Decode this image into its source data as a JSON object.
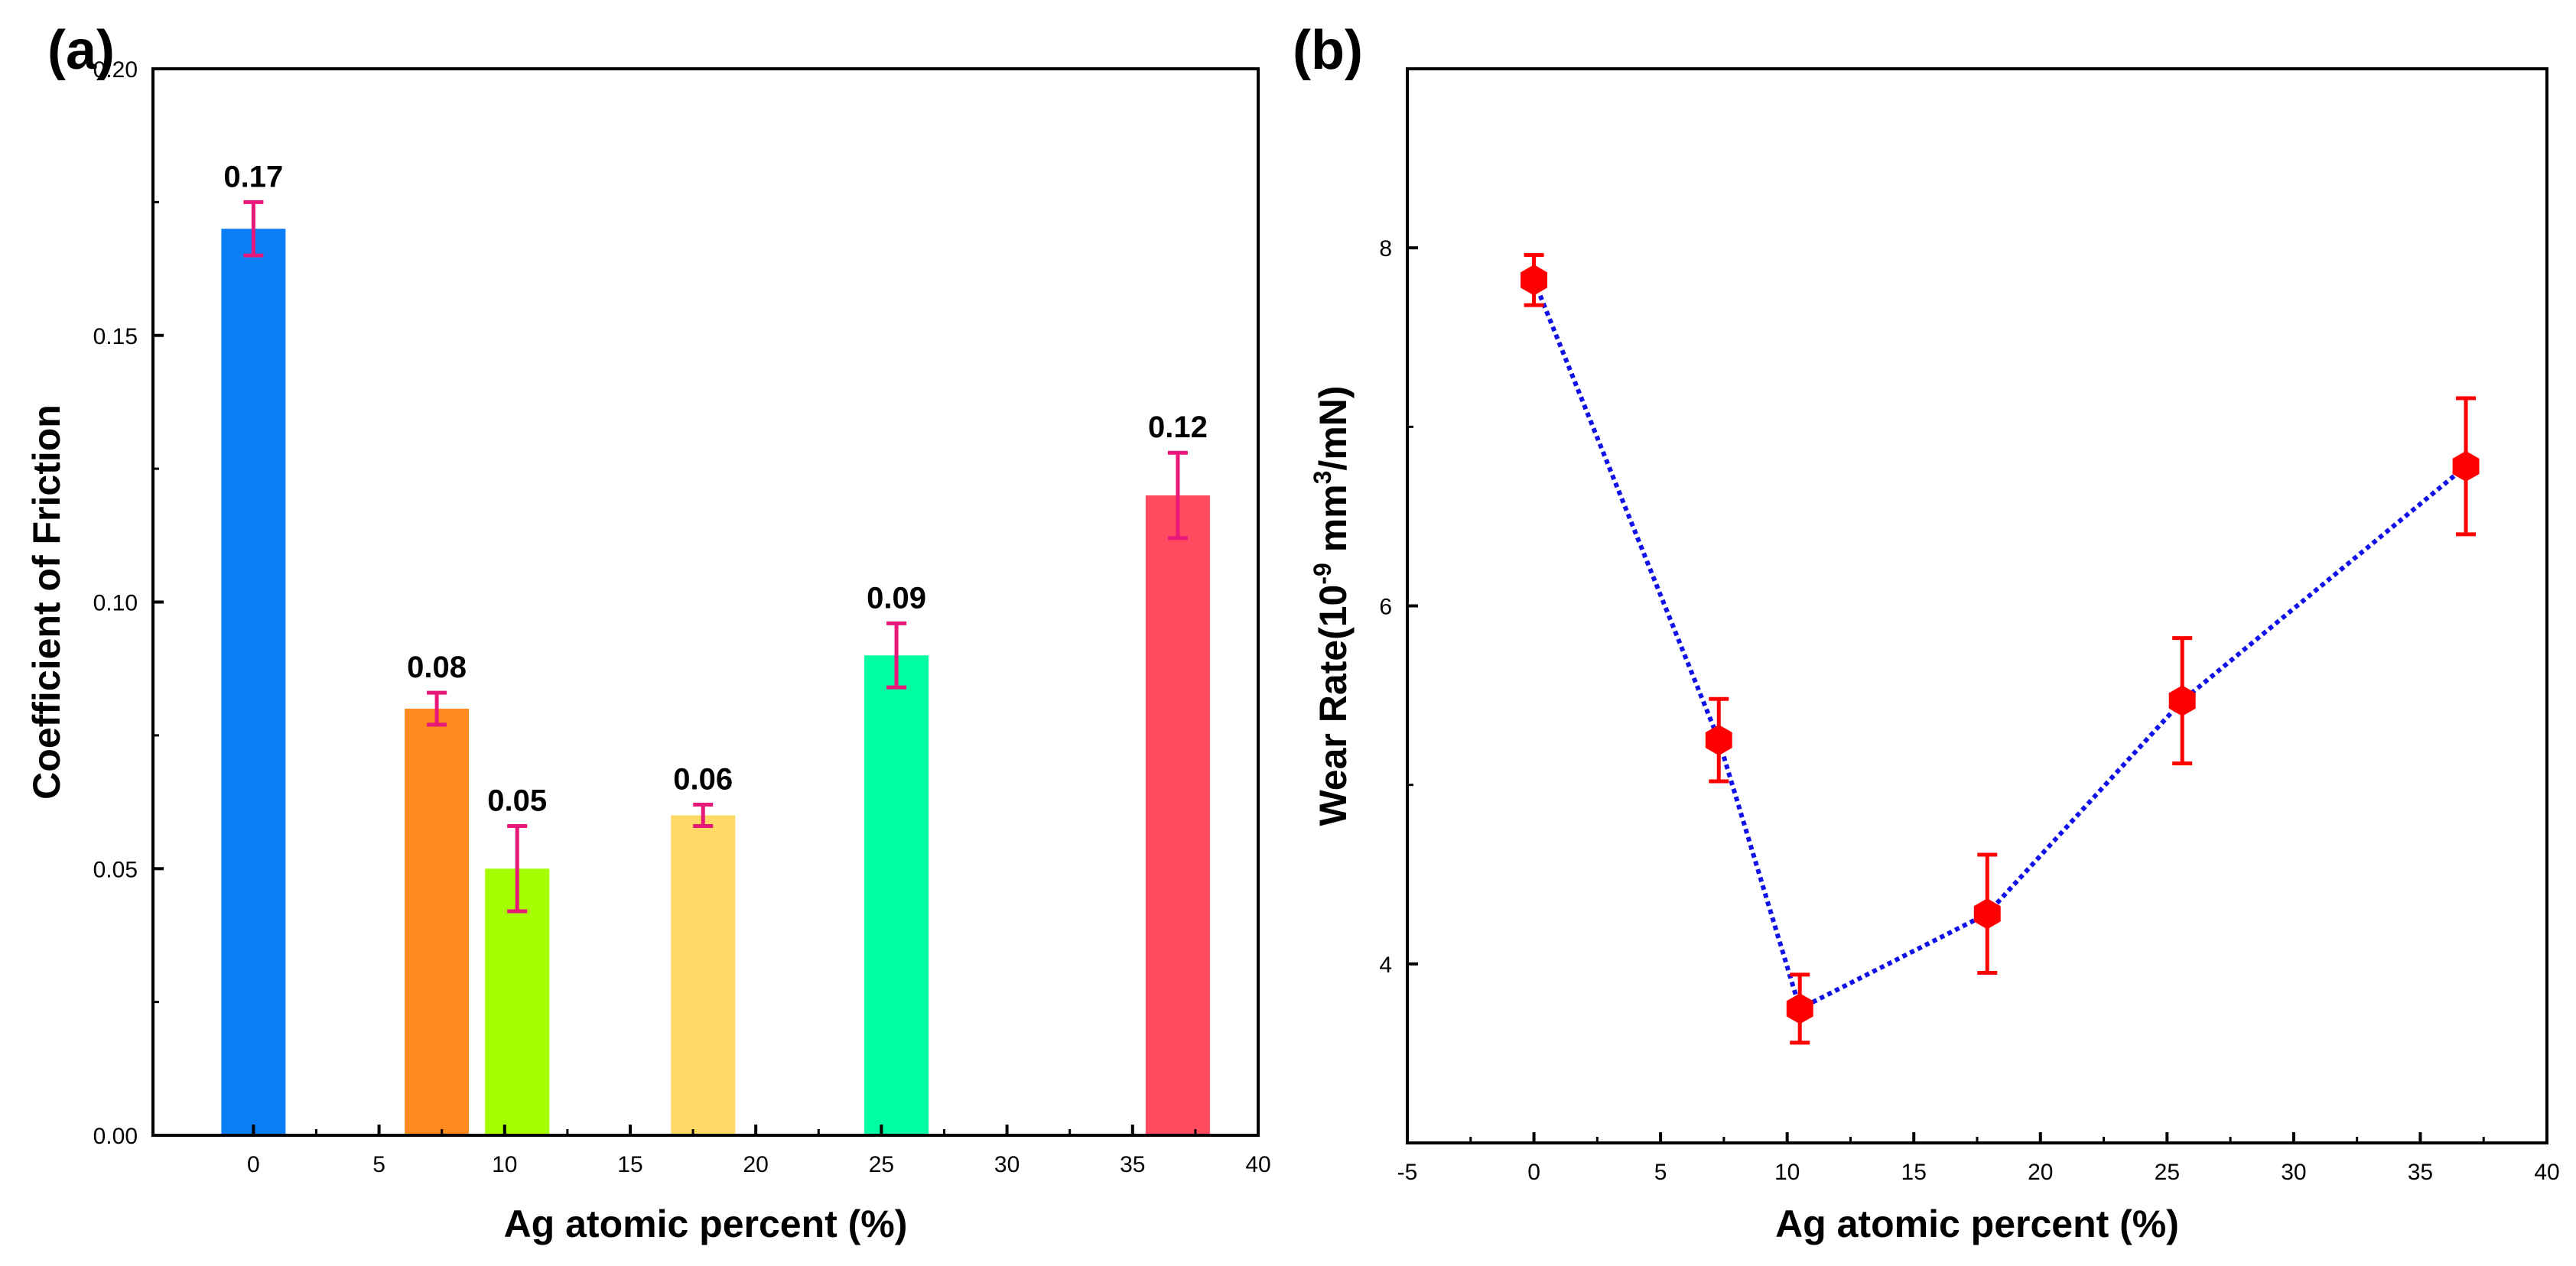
{
  "chart_data": [
    {
      "type": "bar",
      "panel_label": "(a)",
      "xlabel": "Ag atomic percent (%)",
      "ylabel": "Coefficient of Friction",
      "xlim": [
        -4,
        40
      ],
      "ylim": [
        0,
        0.2
      ],
      "x_ticks": [
        "0",
        "5",
        "10",
        "15",
        "20",
        "25",
        "30",
        "35",
        "40"
      ],
      "y_ticks": [
        "0.00",
        "0.05",
        "0.10",
        "0.15",
        "0.20"
      ],
      "reference_line": 0.2,
      "bars": [
        {
          "x": 0,
          "value": 0.17,
          "error": 0.005,
          "label": "0.17",
          "color": "#0A7FF5"
        },
        {
          "x": 7.3,
          "value": 0.08,
          "error": 0.003,
          "label": "0.08",
          "color": "#FF8A20"
        },
        {
          "x": 10.5,
          "value": 0.05,
          "error": 0.008,
          "label": "0.05",
          "color": "#A6FF00"
        },
        {
          "x": 17.9,
          "value": 0.06,
          "error": 0.002,
          "label": "0.06",
          "color": "#FFD966"
        },
        {
          "x": 25.6,
          "value": 0.09,
          "error": 0.006,
          "label": "0.09",
          "color": "#00FFA3"
        },
        {
          "x": 36.8,
          "value": 0.12,
          "error": 0.008,
          "label": "0.12",
          "color": "#FF4A60"
        }
      ],
      "error_bar_color": "#E8187A"
    },
    {
      "type": "line",
      "panel_label": "(b)",
      "xlabel": "Ag atomic percent (%)",
      "ylabel_main": "Wear Rate(10",
      "ylabel_sup": "-9",
      "ylabel_mid": " mm",
      "ylabel_sup2": "3",
      "ylabel_tail": "/mN)",
      "xlim": [
        -5,
        40
      ],
      "ylim": [
        3,
        9
      ],
      "x_ticks": [
        "-5",
        "0",
        "5",
        "10",
        "15",
        "20",
        "25",
        "30",
        "35",
        "40"
      ],
      "y_ticks": [
        "4",
        "6",
        "8"
      ],
      "series": [
        {
          "name": "Wear Rate",
          "x": [
            0,
            7.3,
            10.5,
            17.9,
            25.6,
            36.8
          ],
          "y": [
            7.82,
            5.25,
            3.75,
            4.28,
            5.47,
            6.78
          ],
          "error": [
            0.14,
            0.23,
            0.19,
            0.33,
            0.35,
            0.38
          ],
          "marker_color": "#FF0000",
          "line_color": "#1010E8"
        }
      ]
    }
  ]
}
